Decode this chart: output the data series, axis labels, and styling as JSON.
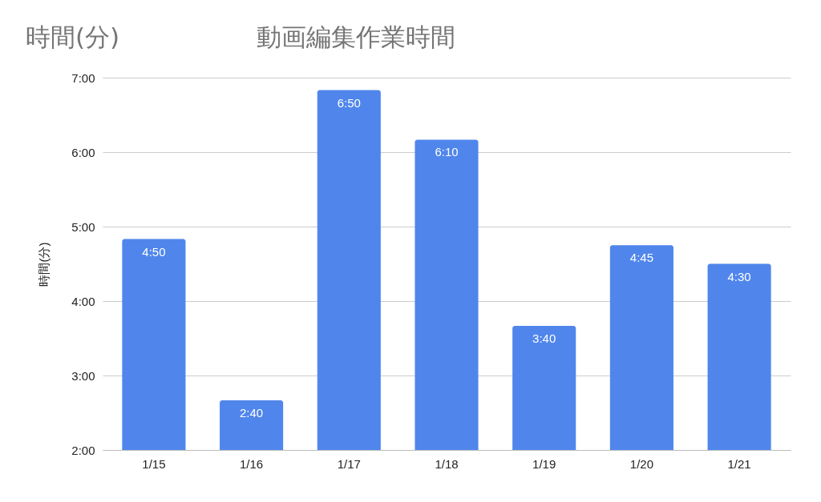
{
  "chart_data": {
    "type": "bar",
    "title": "動画編集作業時間",
    "ylabel": "時間(分)",
    "annotations": [
      "時間(分)"
    ],
    "categories": [
      "1/15",
      "1/16",
      "1/17",
      "1/18",
      "1/19",
      "1/20",
      "1/21"
    ],
    "values": [
      4.833,
      2.667,
      6.833,
      6.167,
      3.667,
      4.75,
      4.5
    ],
    "value_labels": [
      "4:50",
      "2:40",
      "6:50",
      "6:10",
      "3:40",
      "4:45",
      "4:30"
    ],
    "color": "#5086ec",
    "ylim": [
      2,
      7
    ],
    "yticks": [
      {
        "value": 2,
        "label": "2:00"
      },
      {
        "value": 3,
        "label": "3:00"
      },
      {
        "value": 4,
        "label": "4:00"
      },
      {
        "value": 5,
        "label": "5:00"
      },
      {
        "value": 6,
        "label": "6:00"
      },
      {
        "value": 7,
        "label": "7:00"
      }
    ],
    "grid": true
  }
}
